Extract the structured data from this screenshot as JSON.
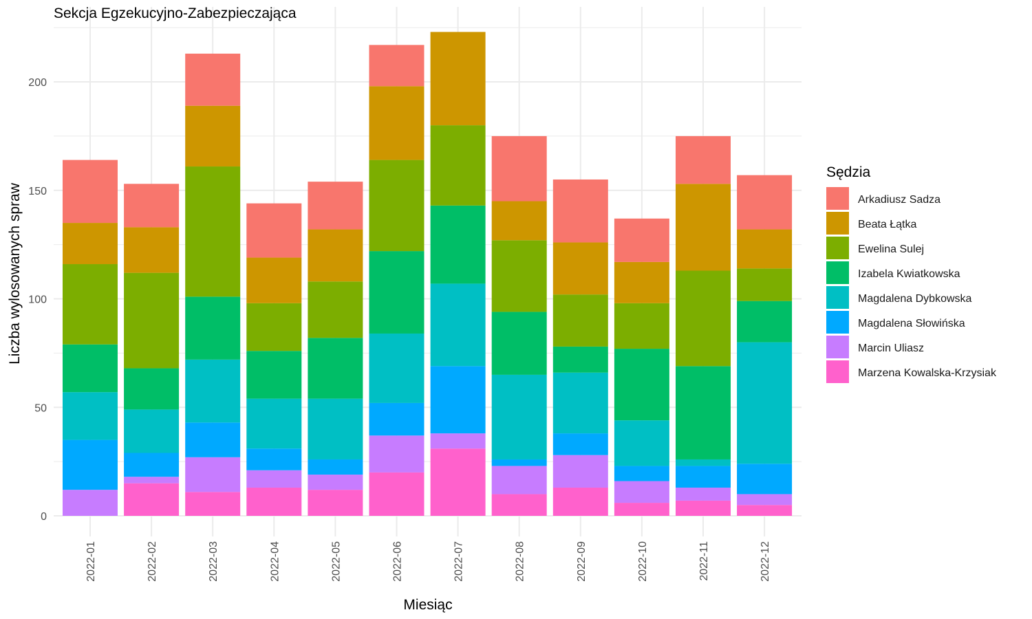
{
  "chart_data": {
    "type": "bar",
    "stacked": true,
    "title": "Sekcja Egzekucyjno-Zabezpieczająca",
    "xlabel": "Miesiąc",
    "ylabel": "Liczba wylosowanych spraw",
    "ylim": [
      0,
      225
    ],
    "yticks": [
      0,
      50,
      100,
      150,
      200
    ],
    "grid": true,
    "legend_title": "Sędzia",
    "legend_position": "right",
    "categories": [
      "2022-01",
      "2022-02",
      "2022-03",
      "2022-04",
      "2022-05",
      "2022-06",
      "2022-07",
      "2022-08",
      "2022-09",
      "2022-10",
      "2022-11",
      "2022-12"
    ],
    "series": [
      {
        "name": "Marzena Kowalska-Krzysiak",
        "color": "#FF61CC",
        "values": [
          0,
          15,
          11,
          13,
          12,
          20,
          31,
          10,
          13,
          6,
          7,
          5
        ]
      },
      {
        "name": "Marcin Uliasz",
        "color": "#C77CFF",
        "values": [
          12,
          3,
          16,
          8,
          7,
          17,
          7,
          13,
          15,
          10,
          6,
          5
        ]
      },
      {
        "name": "Magdalena Słowińska",
        "color": "#00A9FF",
        "values": [
          23,
          11,
          16,
          10,
          7,
          15,
          31,
          3,
          10,
          7,
          10,
          14
        ]
      },
      {
        "name": "Magdalena Dybkowska",
        "color": "#00BFC4",
        "values": [
          22,
          20,
          29,
          23,
          28,
          32,
          38,
          39,
          28,
          21,
          3,
          56
        ]
      },
      {
        "name": "Izabela Kwiatkowska",
        "color": "#00BE67",
        "values": [
          22,
          19,
          29,
          22,
          28,
          38,
          36,
          29,
          12,
          33,
          43,
          19
        ]
      },
      {
        "name": "Ewelina Sulej",
        "color": "#7CAE00",
        "values": [
          37,
          44,
          60,
          22,
          26,
          42,
          37,
          33,
          24,
          21,
          44,
          15
        ]
      },
      {
        "name": "Beata Łątka",
        "color": "#CD9600",
        "values": [
          19,
          21,
          28,
          21,
          24,
          34,
          43,
          18,
          24,
          19,
          40,
          18
        ]
      },
      {
        "name": "Arkadiusz Sadza",
        "color": "#F8766D",
        "values": [
          29,
          20,
          24,
          25,
          22,
          19,
          0,
          30,
          29,
          20,
          22,
          25
        ]
      }
    ],
    "legend_order": [
      "Arkadiusz Sadza",
      "Beata Łątka",
      "Ewelina Sulej",
      "Izabela Kwiatkowska",
      "Magdalena Dybkowska",
      "Magdalena Słowińska",
      "Marcin Uliasz",
      "Marzena Kowalska-Krzysiak"
    ]
  }
}
